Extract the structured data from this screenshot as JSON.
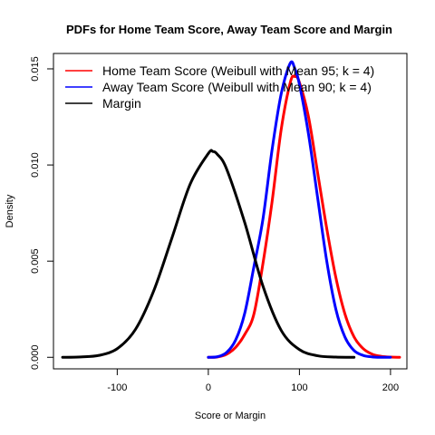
{
  "chart_data": {
    "type": "line",
    "title": "PDFs for Home Team Score, Away Team Score and Margin",
    "xlabel": "Score or Margin",
    "ylabel": "Density",
    "xlim": [
      -170,
      218
    ],
    "ylim": [
      -0.0006,
      0.0158
    ],
    "xticks": [
      -100,
      0,
      100,
      200
    ],
    "xtick_labels": [
      "-100",
      "0",
      "100",
      "200"
    ],
    "yticks": [
      0.0,
      0.005,
      0.01,
      0.015
    ],
    "ytick_labels": [
      "0.000",
      "0.005",
      "0.010",
      "0.015"
    ],
    "grid": false,
    "legend_position": "top-left",
    "series": [
      {
        "name": "Home Team Score (Weibull with Mean 95; k = 4)",
        "color": "#ff0000",
        "x": [
          0,
          10,
          20,
          30,
          40,
          50,
          60,
          70,
          80,
          90,
          95,
          100,
          110,
          120,
          130,
          140,
          150,
          160,
          170,
          180,
          190,
          200,
          210
        ],
        "y": [
          0.0,
          2e-05,
          0.00016,
          0.00052,
          0.00119,
          0.00224,
          0.00489,
          0.0081,
          0.01185,
          0.0143,
          0.0146,
          0.0143,
          0.0125,
          0.0096,
          0.0067,
          0.00415,
          0.00225,
          0.00106,
          0.00045,
          0.00016,
          5e-05,
          1e-05,
          0.0
        ]
      },
      {
        "name": "Away Team Score (Weibull with Mean 90; k = 4)",
        "color": "#0000ff",
        "x": [
          0,
          10,
          20,
          30,
          40,
          50,
          60,
          70,
          80,
          90,
          95,
          100,
          110,
          120,
          130,
          140,
          150,
          160,
          170,
          180,
          190,
          200
        ],
        "y": [
          0.0,
          3e-05,
          0.00025,
          0.0009,
          0.0023,
          0.0047,
          0.0072,
          0.0108,
          0.0137,
          0.0153,
          0.015,
          0.0142,
          0.0116,
          0.0083,
          0.005,
          0.0025,
          0.00105,
          0.00035,
          0.0001,
          2e-05,
          0.0,
          0.0
        ]
      },
      {
        "name": "Margin",
        "color": "#000000",
        "x": [
          -160,
          -140,
          -120,
          -100,
          -80,
          -60,
          -40,
          -20,
          0,
          5,
          10,
          20,
          40,
          60,
          80,
          100,
          120,
          140,
          160
        ],
        "y": [
          0.0,
          2e-05,
          0.0001,
          0.00045,
          0.00145,
          0.00345,
          0.0062,
          0.009,
          0.0106,
          0.0107,
          0.01055,
          0.0098,
          0.007,
          0.0037,
          0.0014,
          0.0004,
          8e-05,
          1e-05,
          0.0
        ]
      }
    ]
  }
}
